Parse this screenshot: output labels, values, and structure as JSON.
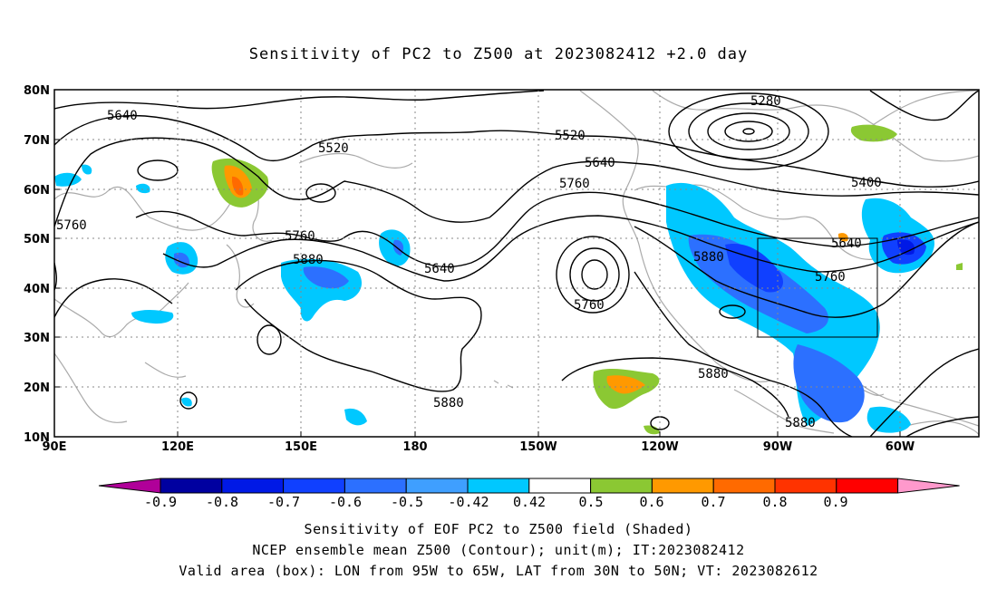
{
  "title": "Sensitivity of PC2 to Z500 at 2023082412 +2.0 day",
  "lat_labels": [
    "80N",
    "70N",
    "60N",
    "50N",
    "40N",
    "30N",
    "20N",
    "10N"
  ],
  "lon_labels": [
    "90E",
    "120E",
    "150E",
    "180",
    "150W",
    "120W",
    "90W",
    "60W"
  ],
  "contour_labels": [
    "5640",
    "5520",
    "5760",
    "5760",
    "5880",
    "5640",
    "5880",
    "5520",
    "5280",
    "5640",
    "5760",
    "5400",
    "5880",
    "5640",
    "5760",
    "5880",
    "5880",
    "5760"
  ],
  "colorbar": {
    "labels": [
      "-0.9",
      "-0.8",
      "-0.7",
      "-0.6",
      "-0.5",
      "-0.42",
      "0.42",
      "0.5",
      "0.6",
      "0.7",
      "0.8",
      "0.9"
    ],
    "colors": [
      "#b00099",
      "#0000a0",
      "#0019e6",
      "#1040ff",
      "#2c70ff",
      "#3f9fff",
      "#00c8ff",
      "#ffffff",
      "#8bc833",
      "#ff9900",
      "#ff6a00",
      "#ff3300",
      "#ff0000",
      "#ff99cc"
    ]
  },
  "captions": {
    "line1": "Sensitivity of EOF PC2 to Z500 field (Shaded)",
    "line2": "NCEP ensemble mean Z500 (Contour); unit(m); IT:2023082412",
    "line3": "Valid area (box): LON from 95W to 65W, LAT from 30N to 50N; VT: 2023082612"
  }
}
